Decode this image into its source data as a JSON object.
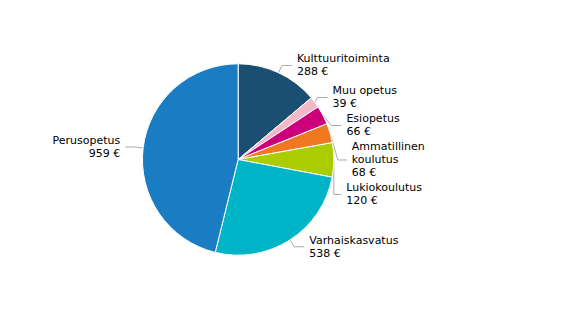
{
  "chart_data": {
    "type": "pie",
    "categories": [
      "Kulttuuritoiminta",
      "Muu opetus",
      "Esiopetus",
      "Ammatillinen\nkoulutus",
      "Lukiokoulutus",
      "Varhaiskasvatus",
      "Perusopetus"
    ],
    "values": [
      288,
      39,
      66,
      68,
      120,
      538,
      959
    ],
    "value_labels": [
      "288 €",
      "39 €",
      "66 €",
      "68 €",
      "120 €",
      "538 €",
      "959 €"
    ],
    "colors": [
      "#1B4F72",
      "#F4B8C8",
      "#CC007A",
      "#F07820",
      "#AACC00",
      "#00B4C8",
      "#1A7DC4"
    ],
    "data_labels": true
  }
}
